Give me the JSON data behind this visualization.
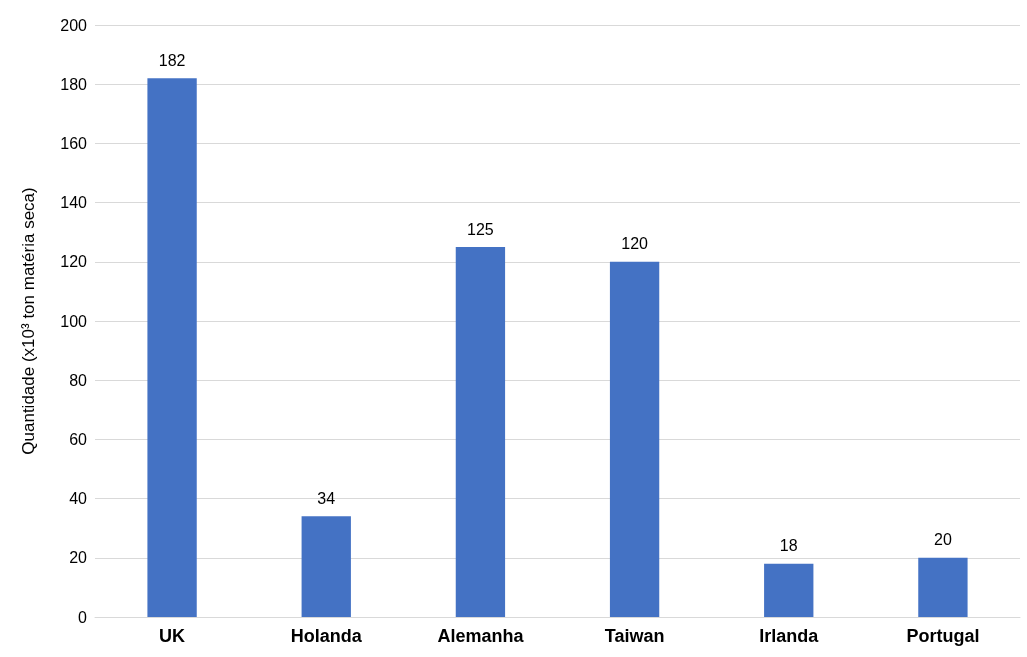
{
  "chart_data": {
    "type": "bar",
    "ylabel": "Quantidade (x10³ ton matéria seca)",
    "categories": [
      "UK",
      "Holanda",
      "Alemanha",
      "Taiwan",
      "Irlanda",
      "Portugal"
    ],
    "values": [
      182,
      34,
      125,
      120,
      18,
      20
    ],
    "color": "#4472c4",
    "ylim": [
      0,
      200
    ],
    "yticks": [
      0,
      20,
      40,
      60,
      80,
      100,
      120,
      140,
      160,
      180,
      200
    ],
    "grid": "y",
    "data_labels": true
  }
}
